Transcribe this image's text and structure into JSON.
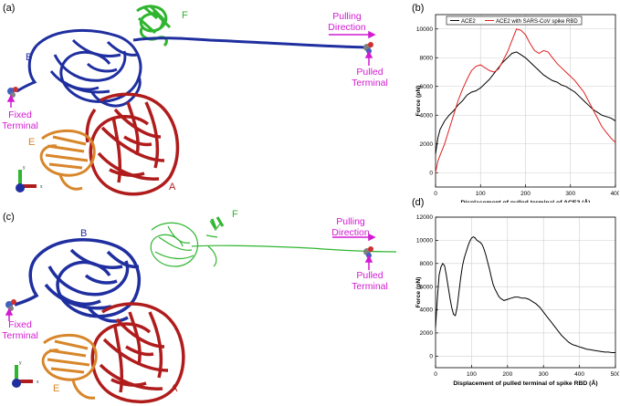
{
  "panels": {
    "a": {
      "label": "(a)",
      "pulling_direction": [
        "Pulling",
        "Direction"
      ],
      "pulled_terminal": [
        "Pulled",
        "Terminal"
      ],
      "fixed_terminal": [
        "Fixed",
        "Terminal"
      ],
      "chains": {
        "A": "A",
        "B": "B",
        "E": "E",
        "F": "F"
      },
      "axes": {
        "x": "x",
        "y": "y"
      }
    },
    "c": {
      "label": "(c)",
      "pulling_direction": [
        "Pulling",
        "Direction"
      ],
      "pulled_terminal": [
        "Pulled",
        "Terminal"
      ],
      "fixed_terminal": [
        "Fixed",
        "Terminal"
      ],
      "chains": {
        "A": "A",
        "B": "B",
        "E": "E",
        "F": "F"
      },
      "axes": {
        "x": "x",
        "y": "y"
      }
    },
    "b": {
      "label": "(b)"
    },
    "d": {
      "label": "(d)"
    }
  },
  "colors": {
    "chain_A": "#b01c1c",
    "chain_B": "#1f2fa0",
    "chain_E": "#d8862a",
    "chain_F": "#2fb52f",
    "annotation": "#d21ad2",
    "series_ace2": "#000000",
    "series_rbd": "#e02020"
  },
  "chart_data": [
    {
      "id": "b",
      "type": "line",
      "xlabel": "Displacement of pulled terminal of ACE2 (Å)",
      "ylabel": "Force (pN)",
      "xlim": [
        0,
        400
      ],
      "ylim": [
        -1000,
        11000
      ],
      "xticks": [
        0,
        100,
        200,
        300,
        400
      ],
      "yticks": [
        0,
        2000,
        4000,
        6000,
        8000,
        10000
      ],
      "grid": true,
      "legend_position": "top",
      "series": [
        {
          "name": "ACE2",
          "color": "#000000",
          "x": [
            0,
            5,
            10,
            20,
            30,
            40,
            50,
            60,
            70,
            80,
            90,
            100,
            110,
            120,
            130,
            140,
            150,
            160,
            170,
            180,
            190,
            200,
            210,
            220,
            230,
            240,
            250,
            260,
            270,
            280,
            290,
            300,
            310,
            320,
            330,
            340,
            350,
            360,
            370,
            380,
            390,
            400
          ],
          "y": [
            1300,
            2400,
            3000,
            3600,
            4000,
            4300,
            4700,
            5000,
            5400,
            5600,
            5700,
            5900,
            6200,
            6500,
            6900,
            7300,
            7700,
            8000,
            8300,
            8400,
            8200,
            8000,
            7700,
            7400,
            7100,
            6800,
            6600,
            6400,
            6300,
            6100,
            6000,
            5800,
            5600,
            5300,
            5000,
            4700,
            4400,
            4200,
            4000,
            3900,
            3800,
            3600
          ]
        },
        {
          "name": "ACE2 with SARS-CoV spike RBD",
          "color": "#e02020",
          "x": [
            0,
            5,
            10,
            20,
            30,
            40,
            50,
            60,
            70,
            80,
            90,
            100,
            110,
            120,
            130,
            140,
            150,
            160,
            170,
            180,
            190,
            200,
            210,
            220,
            230,
            240,
            250,
            260,
            270,
            280,
            290,
            300,
            310,
            320,
            330,
            340,
            350,
            360,
            370,
            380,
            390,
            400
          ],
          "y": [
            0,
            800,
            1200,
            2000,
            3000,
            4000,
            5000,
            5800,
            6500,
            7100,
            7400,
            7500,
            7300,
            7100,
            7000,
            7200,
            7800,
            8400,
            9200,
            10000,
            9900,
            9600,
            9000,
            8500,
            8300,
            8500,
            8400,
            8000,
            7600,
            7300,
            7000,
            6700,
            6400,
            6000,
            5600,
            5000,
            4400,
            3800,
            3200,
            2800,
            2400,
            2100
          ]
        }
      ]
    },
    {
      "id": "d",
      "type": "line",
      "xlabel": "Displacement of pulled terminal of spike RBD (Å)",
      "ylabel": "Force (pN)",
      "xlim": [
        0,
        500
      ],
      "ylim": [
        -1000,
        12000
      ],
      "xticks": [
        0,
        100,
        200,
        300,
        400,
        500
      ],
      "yticks": [
        0,
        2000,
        4000,
        6000,
        8000,
        10000,
        12000
      ],
      "grid": true,
      "series": [
        {
          "color": "#000000",
          "x": [
            0,
            5,
            10,
            15,
            20,
            25,
            30,
            35,
            40,
            45,
            50,
            55,
            60,
            65,
            70,
            75,
            80,
            85,
            90,
            95,
            100,
            105,
            110,
            115,
            120,
            125,
            130,
            135,
            140,
            145,
            150,
            155,
            160,
            165,
            170,
            175,
            180,
            185,
            190,
            200,
            210,
            220,
            230,
            240,
            250,
            260,
            270,
            280,
            290,
            300,
            310,
            320,
            330,
            340,
            350,
            360,
            370,
            380,
            390,
            400,
            410,
            420,
            430,
            440,
            450,
            460,
            470,
            480,
            490,
            500
          ],
          "y": [
            2500,
            5000,
            7000,
            7700,
            8000,
            7800,
            7000,
            6000,
            5000,
            4200,
            3600,
            3500,
            4200,
            5500,
            6800,
            7800,
            8500,
            9000,
            9500,
            9900,
            10200,
            10300,
            10200,
            10000,
            9900,
            9800,
            9600,
            9200,
            8700,
            8100,
            7500,
            6800,
            6200,
            5800,
            5500,
            5200,
            5000,
            4900,
            4800,
            4900,
            5000,
            5100,
            5100,
            5000,
            5000,
            4900,
            4700,
            4500,
            4200,
            3800,
            3400,
            3000,
            2600,
            2200,
            1800,
            1500,
            1200,
            1000,
            900,
            800,
            700,
            600,
            550,
            500,
            450,
            400,
            350,
            350,
            300,
            300
          ]
        }
      ]
    }
  ]
}
